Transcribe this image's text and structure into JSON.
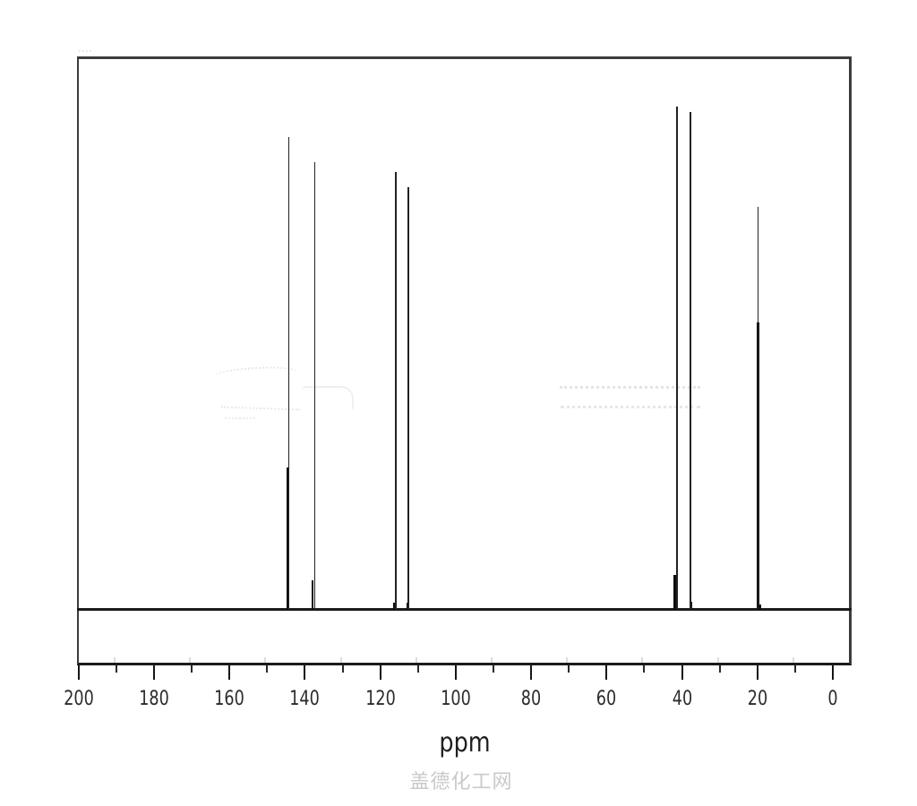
{
  "watermark": "盖德化工网",
  "colors": {
    "trace": "#222222",
    "trace_bold": "#101010",
    "frame": "#3c3c3c",
    "axis": "#161616",
    "tick_label": "#2b2b2b",
    "watermark_text": "#c9c9c9"
  },
  "chart_data": {
    "type": "line",
    "subtype": "13C NMR spectrum",
    "title": "",
    "xlabel": "ppm",
    "ylabel": "",
    "x_axis": {
      "min": 0,
      "max": 200,
      "reversed": true,
      "major_ticks": [
        200,
        180,
        160,
        140,
        120,
        100,
        80,
        60,
        40,
        20,
        0
      ],
      "minor_ticks": [
        190,
        170,
        150,
        130,
        110,
        90,
        70,
        50,
        30,
        10
      ]
    },
    "grid": false,
    "legend": false,
    "peaks": [
      {
        "ppm": 144.2,
        "intensity": 0.94
      },
      {
        "ppm": 137.4,
        "intensity": 0.89
      },
      {
        "ppm": 115.9,
        "intensity": 0.87
      },
      {
        "ppm": 112.5,
        "intensity": 0.84
      },
      {
        "ppm": 41.3,
        "intensity": 1.0
      },
      {
        "ppm": 37.7,
        "intensity": 0.99
      },
      {
        "ppm": 19.8,
        "intensity": 0.8
      }
    ],
    "minor_peaks": [
      {
        "ppm": 144.6,
        "intensity": 0.283
      },
      {
        "ppm": 137.9,
        "intensity": 0.059
      },
      {
        "ppm": 116.3,
        "intensity": 0.014
      },
      {
        "ppm": 112.8,
        "intensity": 0.014
      },
      {
        "ppm": 41.9,
        "intensity": 0.069
      },
      {
        "ppm": 37.5,
        "intensity": 0.016
      },
      {
        "ppm": 19.8,
        "intensity": 0.571
      },
      {
        "ppm": 19.4,
        "intensity": 0.011
      }
    ]
  }
}
